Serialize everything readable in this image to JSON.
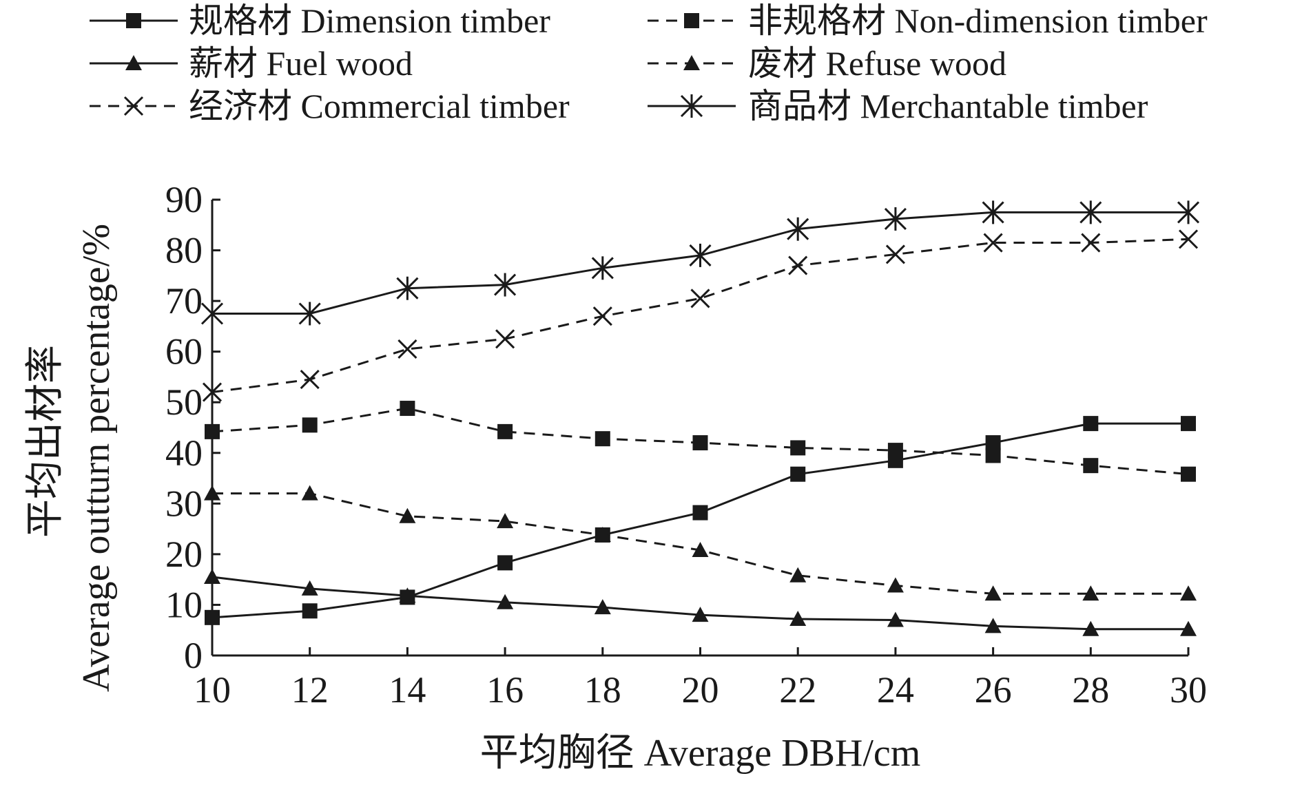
{
  "chart_data": {
    "type": "line",
    "xlabel": "平均胸径 Average DBH/cm",
    "ylabel_cn": "平均出材率",
    "ylabel_en": "Average outturn percentage/%",
    "x": [
      10,
      12,
      14,
      16,
      18,
      20,
      22,
      24,
      26,
      28,
      30
    ],
    "x_ticks": [
      "10",
      "12",
      "14",
      "16",
      "18",
      "20",
      "22",
      "24",
      "26",
      "28",
      "30"
    ],
    "y_ticks": [
      "0",
      "10",
      "20",
      "30",
      "40",
      "50",
      "60",
      "70",
      "80",
      "90"
    ],
    "xlim": [
      10,
      30
    ],
    "ylim": [
      0,
      90
    ],
    "grid": false,
    "legend_position": "top",
    "series": [
      {
        "name": "规格材 Dimension timber",
        "style": "solid",
        "marker": "square",
        "values": [
          7.5,
          8.8,
          11.5,
          18.3,
          23.8,
          28.2,
          35.8,
          38.5,
          42,
          45.8,
          45.8
        ]
      },
      {
        "name": "非规格材 Non-dimension timber",
        "style": "dashed",
        "marker": "square",
        "values": [
          44.2,
          45.5,
          48.8,
          44.2,
          42.8,
          42,
          41,
          40.5,
          39.5,
          37.5,
          35.8
        ]
      },
      {
        "name": "薪材 Fuel wood",
        "style": "solid",
        "marker": "triangle",
        "values": [
          15.5,
          13.2,
          11.8,
          10.5,
          9.5,
          8,
          7.2,
          7,
          5.8,
          5.2,
          5.2
        ]
      },
      {
        "name": "废材 Refuse wood",
        "style": "dashed",
        "marker": "triangle",
        "values": [
          32,
          32,
          27.5,
          26.5,
          23.8,
          20.8,
          15.8,
          13.8,
          12.2,
          12.2,
          12.2
        ]
      },
      {
        "name": "经济材 Commercial timber",
        "style": "dashed",
        "marker": "x",
        "values": [
          52,
          54.5,
          60.5,
          62.5,
          67,
          70.5,
          77,
          79.2,
          81.5,
          81.5,
          82.2
        ]
      },
      {
        "name": "商品材 Merchantable timber",
        "style": "solid",
        "marker": "asterisk",
        "values": [
          67.5,
          67.5,
          72.5,
          73.2,
          76.5,
          79,
          84.2,
          86.2,
          87.5,
          87.5,
          87.5
        ]
      }
    ]
  }
}
